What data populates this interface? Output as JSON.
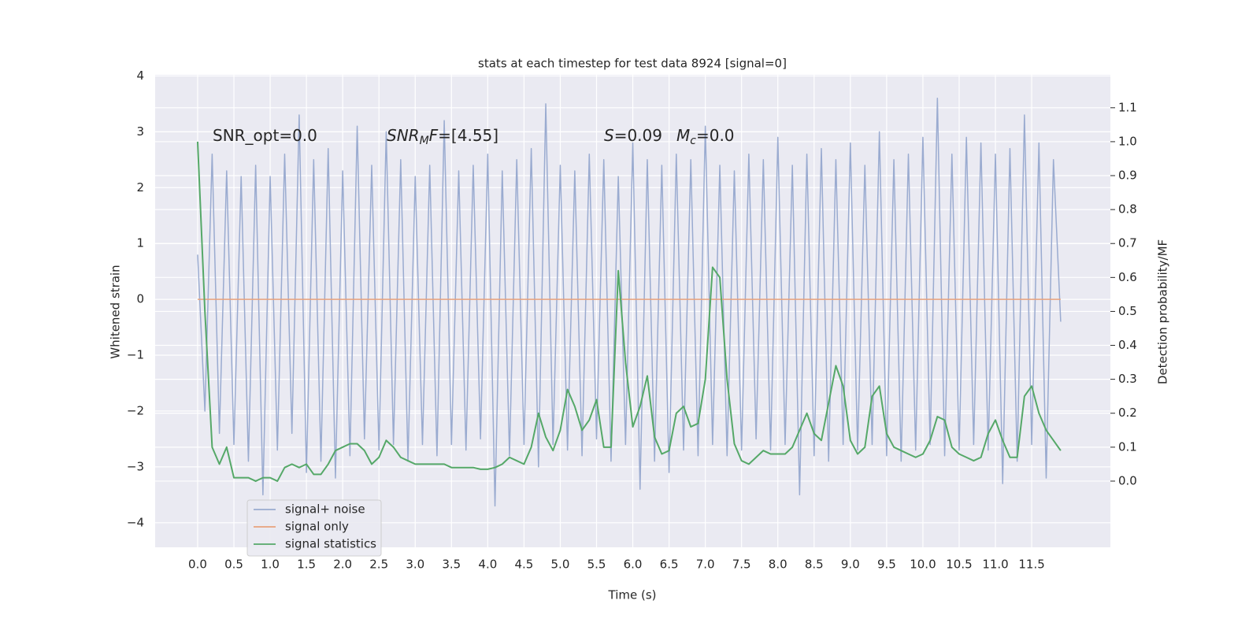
{
  "chart_data": {
    "type": "line",
    "title": "stats at each timestep for test data 8924 [signal=0]",
    "xlabel": "Time (s)",
    "ylabel": "Whitened strain",
    "y2label": "Detection probability/MF",
    "annotations": [
      [
        "SNR_opt=0.0"
      ],
      [
        "SNR",
        "M",
        "F",
        "=[4.55]"
      ],
      [
        "S",
        "=0.09"
      ],
      [
        "M",
        "c",
        "=0.0"
      ]
    ],
    "x": [
      0,
      0.1,
      0.2,
      0.3,
      0.4,
      0.5,
      0.6,
      0.7,
      0.8,
      0.9,
      1,
      1.1,
      1.2,
      1.3,
      1.4,
      1.5,
      1.6,
      1.7,
      1.8,
      1.9,
      2,
      2.1,
      2.2,
      2.3,
      2.4,
      2.5,
      2.6,
      2.7,
      2.8,
      2.9,
      3,
      3.1,
      3.2,
      3.3,
      3.4,
      3.5,
      3.6,
      3.7,
      3.8,
      3.9,
      4,
      4.1,
      4.2,
      4.3,
      4.4,
      4.5,
      4.6,
      4.7,
      4.8,
      4.9,
      5,
      5.1,
      5.2,
      5.3,
      5.4,
      5.5,
      5.6,
      5.7,
      5.8,
      5.9,
      6,
      6.1,
      6.2,
      6.3,
      6.4,
      6.5,
      6.6,
      6.7,
      6.8,
      6.9,
      7,
      7.1,
      7.2,
      7.3,
      7.4,
      7.5,
      7.6,
      7.7,
      7.8,
      7.9,
      8,
      8.1,
      8.2,
      8.3,
      8.4,
      8.5,
      8.6,
      8.7,
      8.8,
      8.9,
      9,
      9.1,
      9.2,
      9.3,
      9.4,
      9.5,
      9.6,
      9.7,
      9.8,
      9.9,
      10,
      10.1,
      10.2,
      10.3,
      10.4,
      10.5,
      10.6,
      10.7,
      10.8,
      10.9,
      11,
      11.1,
      11.2,
      11.3,
      11.4,
      11.5,
      11.6,
      11.7,
      11.8,
      11.9
    ],
    "series": [
      {
        "name": "signal+ noise",
        "color": "#9aabd0",
        "values": [
          0.8,
          -2.0,
          2.6,
          -2.4,
          2.3,
          -2.6,
          2.2,
          -2.9,
          2.4,
          -3.5,
          2.2,
          -2.7,
          2.6,
          -2.4,
          3.3,
          -3.1,
          2.5,
          -2.9,
          2.7,
          -3.2,
          2.3,
          -2.8,
          3.1,
          -2.5,
          2.4,
          -2.7,
          3.0,
          -2.6,
          2.5,
          -2.9,
          2.2,
          -2.6,
          2.4,
          -2.8,
          3.2,
          -2.6,
          2.3,
          -2.7,
          2.4,
          -2.5,
          2.6,
          -3.7,
          2.3,
          -2.8,
          2.5,
          -2.6,
          2.7,
          -3.0,
          3.5,
          -2.6,
          2.4,
          -2.7,
          2.3,
          -2.8,
          2.6,
          -2.5,
          2.5,
          -2.9,
          2.2,
          -2.6,
          2.8,
          -3.4,
          2.5,
          -2.9,
          2.4,
          -3.1,
          2.6,
          -2.7,
          2.5,
          -2.8,
          3.1,
          -2.6,
          2.4,
          -2.8,
          2.3,
          -2.7,
          2.6,
          -2.5,
          2.5,
          -2.7,
          2.9,
          -2.6,
          2.4,
          -3.5,
          2.6,
          -2.8,
          2.7,
          -2.9,
          2.5,
          -2.6,
          2.8,
          -2.7,
          2.4,
          -2.6,
          3.0,
          -2.8,
          2.5,
          -2.9,
          2.6,
          -2.7,
          2.9,
          -2.6,
          3.6,
          -2.8,
          2.6,
          -2.7,
          2.9,
          -2.6,
          2.8,
          -2.7,
          2.6,
          -3.3,
          2.7,
          -2.9,
          3.3,
          -2.6,
          2.8,
          -3.2,
          2.5,
          -0.4
        ]
      },
      {
        "name": "signal only",
        "color": "#e8a27c",
        "values": [
          0,
          0,
          0,
          0,
          0,
          0,
          0,
          0,
          0,
          0,
          0,
          0,
          0,
          0,
          0,
          0,
          0,
          0,
          0,
          0,
          0,
          0,
          0,
          0,
          0,
          0,
          0,
          0,
          0,
          0,
          0,
          0,
          0,
          0,
          0,
          0,
          0,
          0,
          0,
          0,
          0,
          0,
          0,
          0,
          0,
          0,
          0,
          0,
          0,
          0,
          0,
          0,
          0,
          0,
          0,
          0,
          0,
          0,
          0,
          0,
          0,
          0,
          0,
          0,
          0,
          0,
          0,
          0,
          0,
          0,
          0,
          0,
          0,
          0,
          0,
          0,
          0,
          0,
          0,
          0,
          0,
          0,
          0,
          0,
          0,
          0,
          0,
          0,
          0,
          0,
          0,
          0,
          0,
          0,
          0,
          0,
          0,
          0,
          0,
          0,
          0,
          0,
          0,
          0,
          0,
          0,
          0,
          0,
          0,
          0,
          0,
          0,
          0,
          0,
          0,
          0,
          0,
          0,
          0,
          0
        ]
      },
      {
        "name": "signal statistics",
        "color": "#55a868",
        "axis": "y2",
        "values": [
          1.0,
          0.5,
          0.1,
          0.05,
          0.1,
          0.01,
          0.01,
          0.01,
          0.0,
          0.01,
          0.01,
          0.0,
          0.04,
          0.05,
          0.04,
          0.05,
          0.02,
          0.02,
          0.05,
          0.09,
          0.1,
          0.11,
          0.11,
          0.09,
          0.05,
          0.07,
          0.12,
          0.1,
          0.07,
          0.06,
          0.05,
          0.05,
          0.05,
          0.05,
          0.05,
          0.04,
          0.04,
          0.04,
          0.04,
          0.035,
          0.035,
          0.04,
          0.05,
          0.07,
          0.06,
          0.05,
          0.1,
          0.2,
          0.13,
          0.09,
          0.15,
          0.27,
          0.22,
          0.15,
          0.18,
          0.24,
          0.1,
          0.1,
          0.62,
          0.35,
          0.16,
          0.22,
          0.31,
          0.13,
          0.08,
          0.09,
          0.2,
          0.22,
          0.16,
          0.17,
          0.3,
          0.63,
          0.6,
          0.3,
          0.11,
          0.06,
          0.05,
          0.07,
          0.09,
          0.08,
          0.08,
          0.08,
          0.1,
          0.15,
          0.2,
          0.14,
          0.12,
          0.23,
          0.34,
          0.28,
          0.12,
          0.08,
          0.1,
          0.25,
          0.28,
          0.14,
          0.1,
          0.09,
          0.08,
          0.07,
          0.08,
          0.12,
          0.19,
          0.18,
          0.1,
          0.08,
          0.07,
          0.06,
          0.07,
          0.14,
          0.18,
          0.12,
          0.07,
          0.07,
          0.25,
          0.28,
          0.2,
          0.15,
          0.12,
          0.09
        ]
      }
    ],
    "xlim": [
      -0.586,
      12.585
    ],
    "xticks": [
      {
        "value": 0,
        "label": "0.0"
      },
      {
        "value": 0.5,
        "label": "0.5"
      },
      {
        "value": 1,
        "label": "1.0"
      },
      {
        "value": 1.5,
        "label": "1.5"
      },
      {
        "value": 2,
        "label": "2.0"
      },
      {
        "value": 2.5,
        "label": "2.5"
      },
      {
        "value": 3,
        "label": "3.0"
      },
      {
        "value": 3.5,
        "label": "3.5"
      },
      {
        "value": 4,
        "label": "4.0"
      },
      {
        "value": 4.5,
        "label": "4.5"
      },
      {
        "value": 5,
        "label": "5.0"
      },
      {
        "value": 5.5,
        "label": "5.5"
      },
      {
        "value": 6,
        "label": "6.0"
      },
      {
        "value": 6.5,
        "label": "6.5"
      },
      {
        "value": 7,
        "label": "7.0"
      },
      {
        "value": 7.5,
        "label": "7.5"
      },
      {
        "value": 8,
        "label": "8.0"
      },
      {
        "value": 8.5,
        "label": "8.5"
      },
      {
        "value": 9,
        "label": "9.0"
      },
      {
        "value": 9.5,
        "label": "9.5"
      },
      {
        "value": 10,
        "label": "10.0"
      },
      {
        "value": 10.5,
        "label": "10.5"
      },
      {
        "value": 11,
        "label": "11.0"
      },
      {
        "value": 11.5,
        "label": "11.5"
      }
    ],
    "ylim": [
      -4.44,
      4.02
    ],
    "yticks": [
      {
        "value": -4,
        "label": "−4"
      },
      {
        "value": -3,
        "label": "−3"
      },
      {
        "value": -2,
        "label": "−2"
      },
      {
        "value": -1,
        "label": "−1"
      },
      0,
      1,
      2,
      3,
      4
    ],
    "y2lim": [
      -0.195,
      1.197
    ],
    "y2ticks": [
      {
        "value": 0,
        "label": "0.0"
      },
      {
        "value": 0.1,
        "label": "0.1"
      },
      {
        "value": 0.2,
        "label": "0.2"
      },
      {
        "value": 0.3,
        "label": "0.3"
      },
      {
        "value": 0.4,
        "label": "0.4"
      },
      {
        "value": 0.5,
        "label": "0.5"
      },
      {
        "value": 0.6,
        "label": "0.6"
      },
      {
        "value": 0.7,
        "label": "0.7"
      },
      {
        "value": 0.8,
        "label": "0.8"
      },
      {
        "value": 0.9,
        "label": "0.9"
      },
      {
        "value": 1,
        "label": "1.0"
      },
      {
        "value": 1.1,
        "label": "1.1"
      }
    ],
    "grid": true,
    "legend": "lower left",
    "background": "#eaeaf2"
  }
}
